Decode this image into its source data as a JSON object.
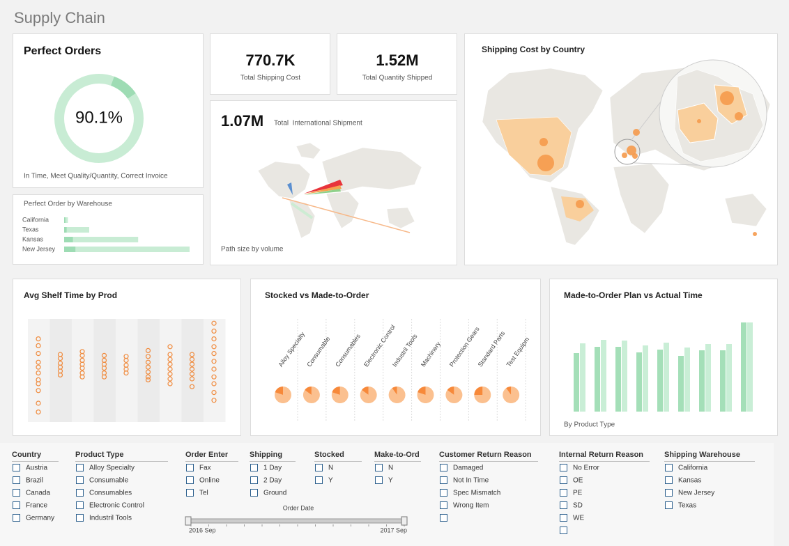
{
  "title": "Supply Chain",
  "perfect_orders": {
    "title": "Perfect Orders",
    "value": 90.1,
    "value_label": "90.1%",
    "caption": "In Time, Meet Quality/Quantity, Correct Invoice",
    "colors": [
      "#c8ecd4",
      "#9edcb4"
    ]
  },
  "warehouse": {
    "title": "Perfect Order by Warehouse",
    "categories": [
      "California",
      "Texas",
      "Kansas",
      "New Jersey"
    ],
    "xlim": [
      0,
      100
    ],
    "series": [
      {
        "color": "#c8ecd4",
        "values": [
          3,
          20,
          59,
          100
        ]
      },
      {
        "color": "#9edcb4",
        "values": [
          1,
          2,
          7,
          9
        ]
      }
    ]
  },
  "kpis": [
    {
      "value": "770.7K",
      "label": "Total Shipping Cost"
    },
    {
      "value": "1.52M",
      "label": "Total Quantity Shipped"
    }
  ],
  "international": {
    "value": "1.07M",
    "label": "Total  International Shipment",
    "caption": "Path size by volume"
  },
  "shipping_map": {
    "title": "Shipping Cost by Country"
  },
  "shelf": {
    "title": "Avg Shelf Time by Prod",
    "ylim": [
      0,
      100
    ],
    "color": "#f08a3c",
    "columns": [
      [
        81,
        74,
        66,
        57,
        52,
        46,
        39,
        35,
        28,
        15,
        6
      ],
      [
        65,
        61,
        56,
        52,
        48,
        44
      ],
      [
        68,
        64,
        59,
        55,
        51,
        46,
        42
      ],
      [
        64,
        59,
        55,
        51,
        46,
        42
      ],
      [
        63,
        59,
        54,
        50,
        46
      ],
      [
        69,
        63,
        57,
        52,
        47,
        42,
        39
      ],
      [
        73,
        65,
        60,
        55,
        50,
        45,
        40,
        35
      ],
      [
        65,
        60,
        55,
        50,
        45,
        40,
        32
      ],
      [
        97,
        89,
        81,
        73,
        66,
        58,
        50,
        42,
        35,
        26,
        18
      ]
    ]
  },
  "stocked": {
    "title": "Stocked vs Made-to-Order",
    "categories": [
      "Alloy Specialty",
      "Consumable",
      "Consumables",
      "Electronic Control",
      "Industril Tools",
      "Machinery",
      "Protection Gears",
      "Standard Parts",
      "Test Equipm"
    ],
    "colors": [
      "#fbc08f",
      "#f7893a"
    ],
    "values": [
      [
        80,
        20
      ],
      [
        85,
        15
      ],
      [
        80,
        20
      ],
      [
        85,
        15
      ],
      [
        90,
        10
      ],
      [
        80,
        20
      ],
      [
        85,
        15
      ],
      [
        75,
        25
      ],
      [
        90,
        10
      ]
    ]
  },
  "plan": {
    "title": "Made-to-Order Plan vs Actual Time",
    "caption": "By Product Type",
    "ylim": [
      0,
      140
    ],
    "series": [
      {
        "color": "#a4dfb8",
        "values": [
          84,
          93,
          93,
          85,
          89,
          80,
          88,
          88,
          128
        ]
      },
      {
        "color": "#c9eed6",
        "values": [
          98,
          103,
          102,
          95,
          99,
          92,
          97,
          97,
          128
        ]
      }
    ]
  },
  "filters": [
    {
      "title": "Country",
      "items": [
        "Austria",
        "Brazil",
        "Canada",
        "France",
        "Germany"
      ]
    },
    {
      "title": "Product Type",
      "items": [
        "Alloy Specialty",
        "Consumable",
        "Consumables",
        "Electronic Control",
        "Industril Tools"
      ]
    },
    {
      "title": "Order Enter",
      "items": [
        "Fax",
        "Online",
        "Tel"
      ]
    },
    {
      "title": "Shipping",
      "items": [
        "1 Day",
        "2 Day",
        "Ground"
      ]
    },
    {
      "title": "Stocked",
      "items": [
        "N",
        "Y"
      ]
    },
    {
      "title": "Make-to-Ord",
      "items": [
        "N",
        "Y"
      ]
    },
    {
      "title": "Customer Return Reason",
      "items": [
        "Damaged",
        "Not In Time",
        "Spec Mismatch",
        "Wrong Item"
      ]
    },
    {
      "title": "Internal Return Reason",
      "items": [
        "No Error",
        "OE",
        "PE",
        "SD",
        "WE"
      ]
    },
    {
      "title": "Shipping Warehouse",
      "items": [
        "California",
        "Kansas",
        "New Jersey",
        "Texas"
      ]
    }
  ],
  "order_date": {
    "title": "Order Date",
    "start": "2016 Sep",
    "end": "2017 Sep"
  }
}
